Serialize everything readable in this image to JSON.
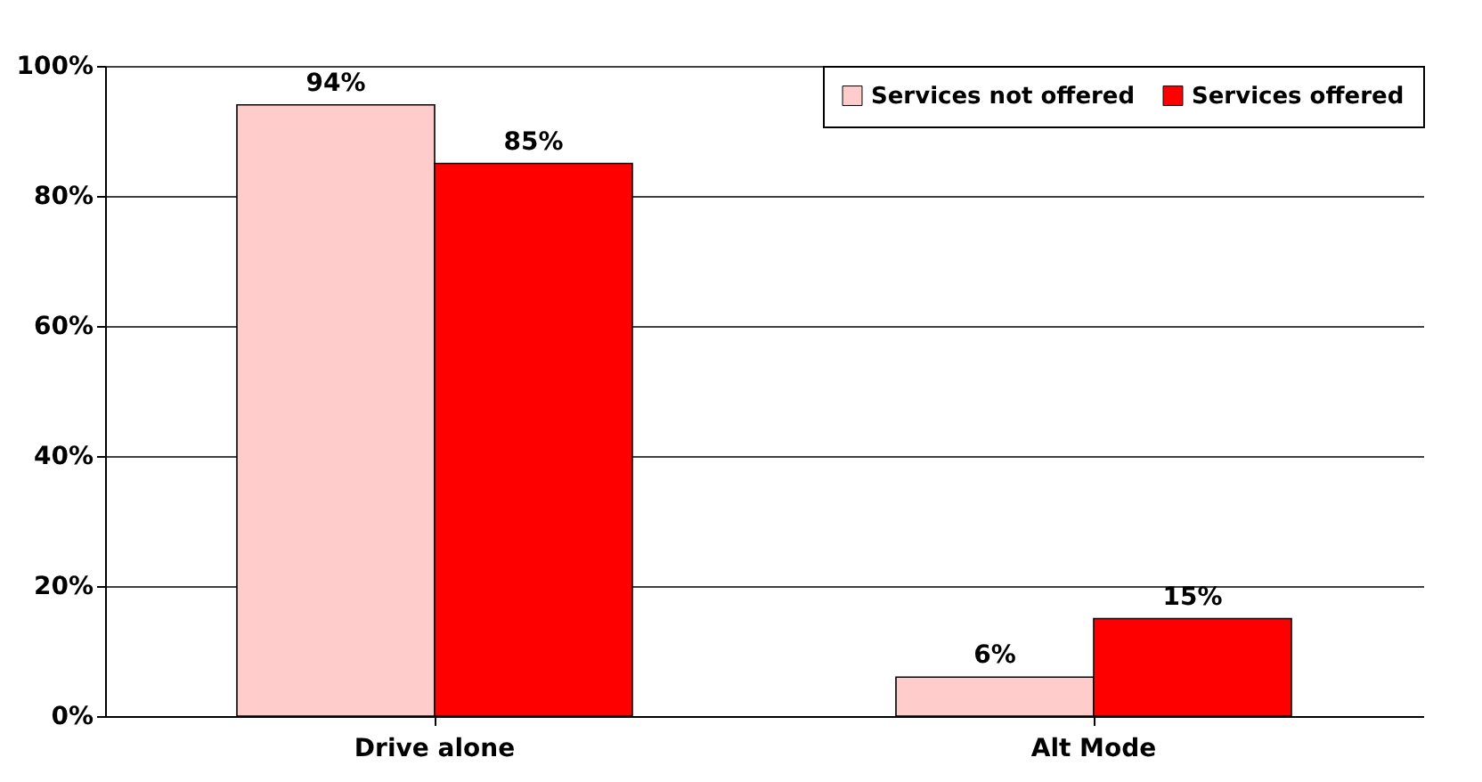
{
  "chart_data": {
    "type": "bar",
    "categories": [
      "Drive alone",
      "Alt Mode"
    ],
    "series": [
      {
        "name": "Services not offered",
        "color": "#ffcccc",
        "values": [
          94,
          6
        ],
        "value_labels": [
          "94%",
          "6%"
        ]
      },
      {
        "name": "Services offered",
        "color": "#ff0000",
        "values": [
          85,
          15
        ],
        "value_labels": [
          "85%",
          "15%"
        ]
      }
    ],
    "ylim": [
      0,
      100
    ],
    "yticks": [
      {
        "value": 0,
        "label": "0%"
      },
      {
        "value": 20,
        "label": "20%"
      },
      {
        "value": 40,
        "label": "40%"
      },
      {
        "value": 60,
        "label": "60%"
      },
      {
        "value": 80,
        "label": "80%"
      },
      {
        "value": 100,
        "label": "100%"
      }
    ],
    "grid": "y",
    "legend": "top right"
  }
}
